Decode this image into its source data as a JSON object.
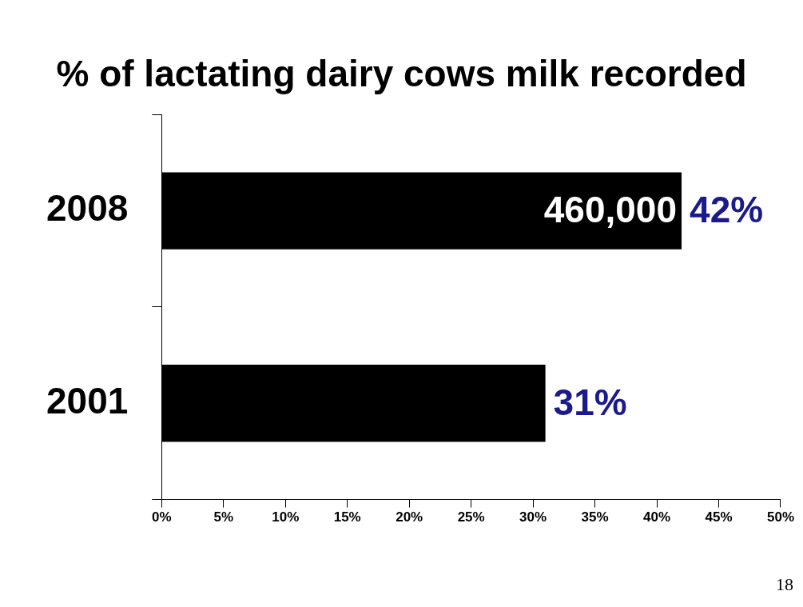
{
  "chart_data": {
    "type": "bar",
    "orientation": "horizontal",
    "title": "% of lactating dairy cows milk recorded",
    "categories": [
      "2008",
      "2001"
    ],
    "series": [
      {
        "color": "#000000",
        "values": [
          42,
          31
        ],
        "value_labels": [
          "42%",
          "31%"
        ]
      }
    ],
    "xlim": [
      0,
      50
    ],
    "xticks": [
      {
        "value": 0,
        "label": "0%"
      },
      {
        "value": 5,
        "label": "5%"
      },
      {
        "value": 10,
        "label": "10%"
      },
      {
        "value": 15,
        "label": "15%"
      },
      {
        "value": 20,
        "label": "20%"
      },
      {
        "value": 25,
        "label": "25%"
      },
      {
        "value": 30,
        "label": "30%"
      },
      {
        "value": 35,
        "label": "35%"
      },
      {
        "value": 40,
        "label": "40%"
      },
      {
        "value": 45,
        "label": "45%"
      },
      {
        "value": 50,
        "label": "50%"
      }
    ],
    "annotations": [
      {
        "text": "460,000",
        "x": 42,
        "y": "2008"
      },
      "18"
    ],
    "grid": false,
    "legend": false
  }
}
